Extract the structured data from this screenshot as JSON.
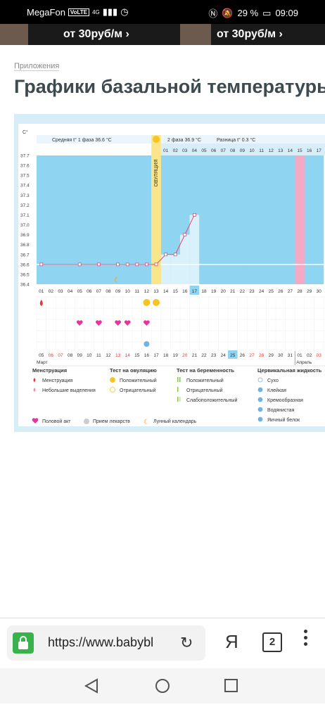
{
  "status_bar": {
    "carrier": "MegaFon",
    "volte": "VoLTE",
    "network": "4G",
    "battery": "29 %",
    "time": "09:09"
  },
  "ad": {
    "text": "от 30руб/м ›"
  },
  "breadcrumb": "Приложения",
  "page_title": "Графики базальной температуры",
  "chart_data": {
    "type": "line",
    "unit": "C°",
    "y_ticks": [
      "37.7",
      "37.6",
      "37.5",
      "37.4",
      "37.3",
      "37.2",
      "37.1",
      "37.0",
      "36.9",
      "36.8",
      "36.7",
      "36.6",
      "36.5",
      "36.4"
    ],
    "ylim": [
      36.4,
      37.7
    ],
    "header": {
      "phase1": "Средняя t° 1 фаза",
      "phase1_value": "36.6 °C",
      "phase2": "2 фаза",
      "phase2_value": "36.9 °C",
      "diff": "Разница t°",
      "diff_value": "0.3 °C",
      "ovulation": "ОВУЛЯЦИЯ"
    },
    "cycle_days": [
      "01",
      "02",
      "03",
      "04",
      "05",
      "06",
      "07",
      "08",
      "09",
      "10",
      "11",
      "12",
      "13",
      "14",
      "15",
      "16",
      "17",
      "18",
      "19",
      "20",
      "21",
      "22",
      "23",
      "24",
      "25",
      "26",
      "27",
      "28",
      "29",
      "30"
    ],
    "cycle_days_after": [
      "01",
      "02",
      "03",
      "04",
      "05",
      "06",
      "07",
      "08",
      "09",
      "10",
      "11",
      "12",
      "13",
      "14",
      "15",
      "16",
      "17"
    ],
    "temperatures": [
      36.6,
      null,
      null,
      null,
      36.6,
      null,
      36.6,
      null,
      36.6,
      36.6,
      36.6,
      36.6,
      36.6,
      36.7,
      36.7,
      36.9,
      37.1
    ],
    "dates": [
      "05",
      "06",
      "07",
      "08",
      "09",
      "10",
      "11",
      "12",
      "13",
      "14",
      "15",
      "16",
      "17",
      "18",
      "19",
      "20",
      "21",
      "22",
      "23",
      "24",
      "25",
      "26",
      "27",
      "28",
      "29",
      "30",
      "31",
      "01",
      "02",
      "03"
    ],
    "red_dates": [
      "06",
      "07",
      "13",
      "14",
      "20",
      "27",
      "28",
      "03"
    ],
    "months": [
      "Март",
      "Апрель"
    ],
    "menstruation_days": [
      1
    ],
    "sex_days": [
      5,
      7,
      9,
      10,
      12
    ],
    "ovulation_test_positive_days": [
      12,
      13
    ],
    "moon_day": 9,
    "mucus_days": [
      12
    ],
    "current_day": 17,
    "pink_day": 28
  },
  "legend": {
    "menstruation": {
      "title": "Менструация",
      "items": [
        "Менструация",
        "Небольшие выделения"
      ]
    },
    "ovulation_test": {
      "title": "Тест на овуляцию",
      "items": [
        "Положительный",
        "Отрицательный"
      ]
    },
    "pregnancy_test": {
      "title": "Тест на беременность",
      "items": [
        "Положительный",
        "Отрицательный",
        "Слабоположительный"
      ]
    },
    "cervical": {
      "title": "Цервикальная жидкость",
      "items": [
        "Сухо",
        "Клейкая",
        "Кремообразная",
        "Водянистая",
        "Яичный белок"
      ]
    },
    "bottom": [
      "Половой акт",
      "Прием лекарств",
      "Лунный календарь"
    ]
  },
  "browser": {
    "url": "https://www.babybl",
    "tab_count": "2",
    "ya": "Я"
  },
  "colors": {
    "sky": "#8fd4f0",
    "yellow": "#fbe58a",
    "pink": "#f4a9c4",
    "temp_line": "#e8467a",
    "heart": "#e8359a"
  }
}
